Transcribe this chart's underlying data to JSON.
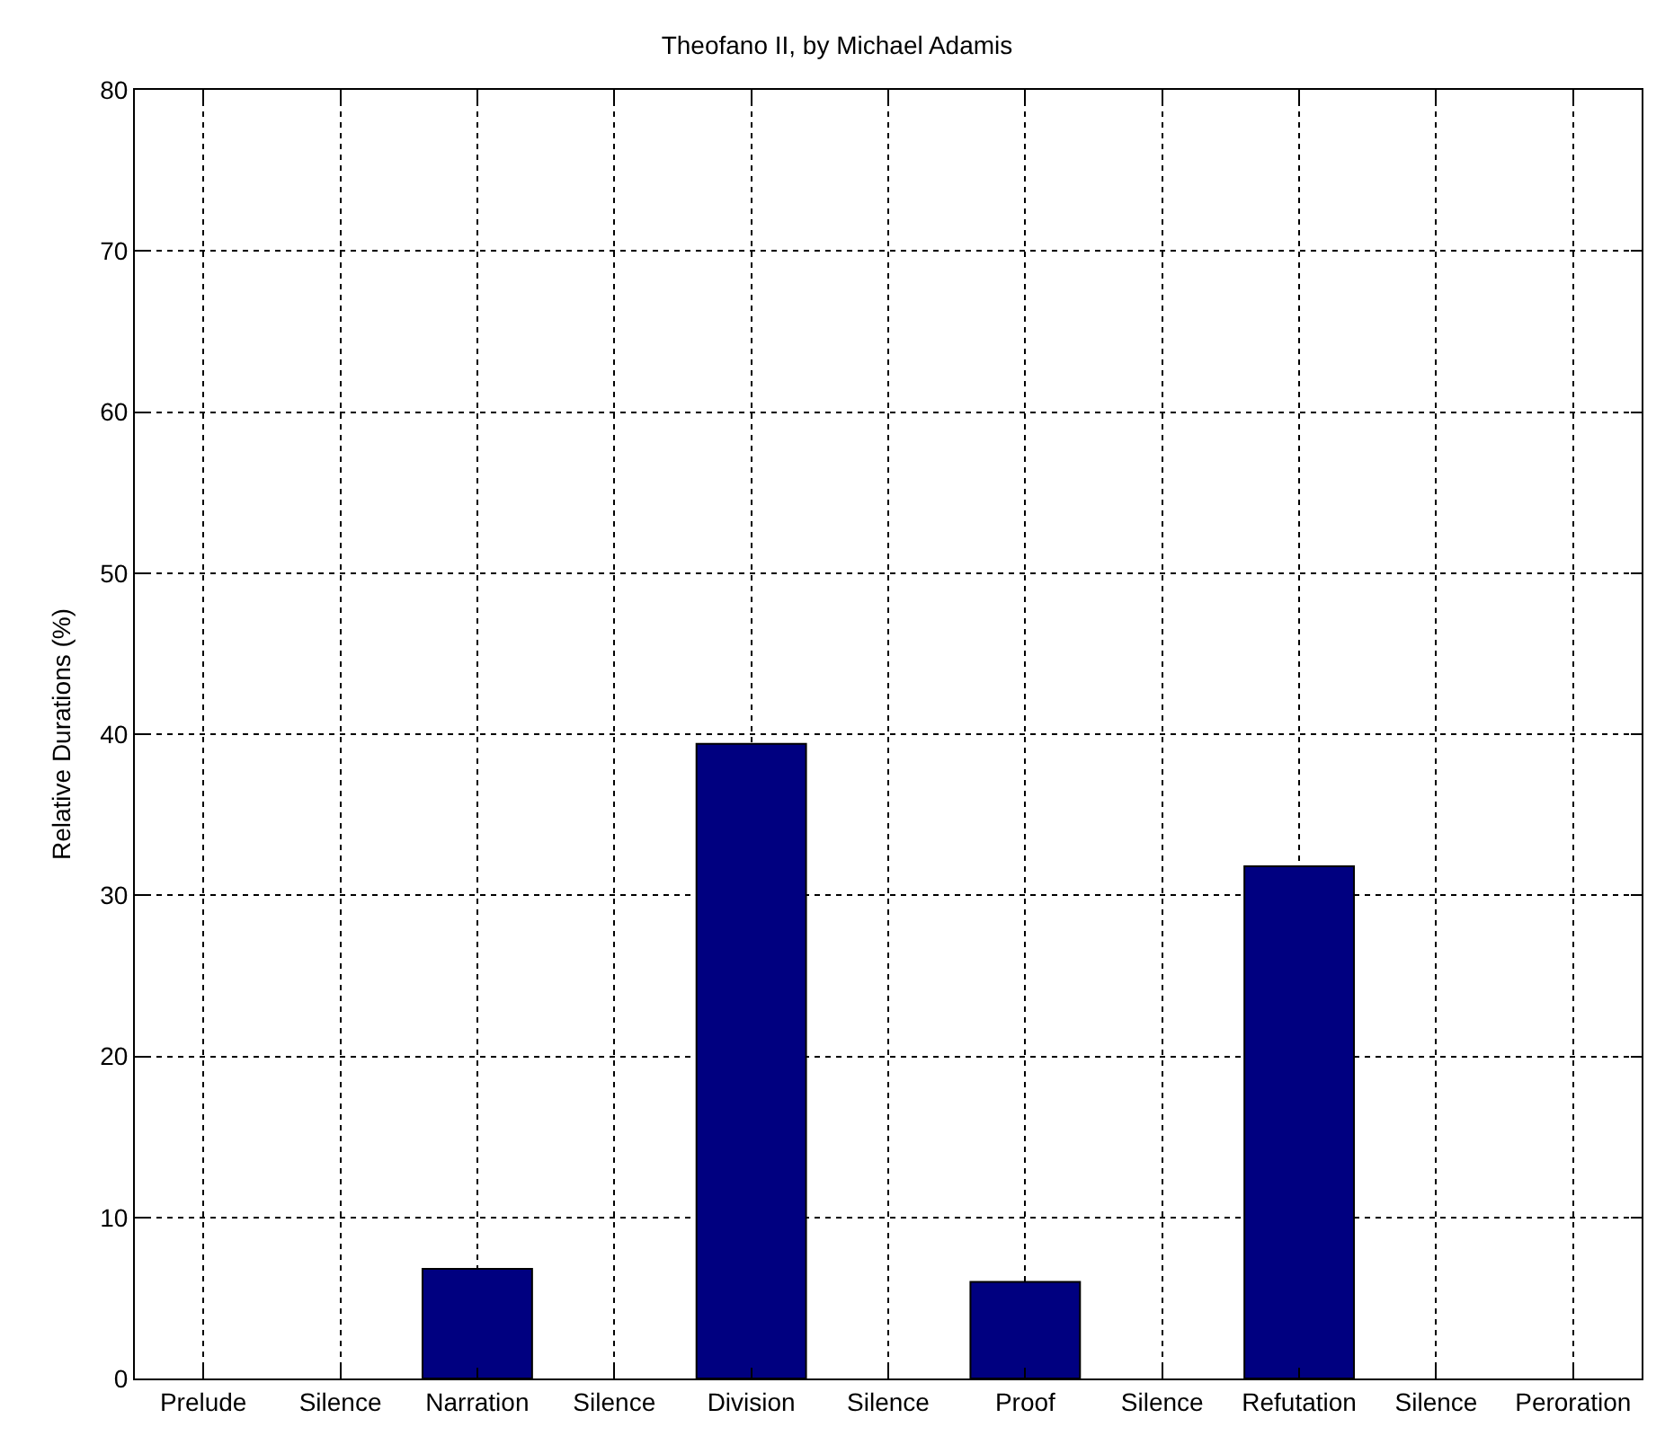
{
  "chart_data": {
    "type": "bar",
    "title": "Theofano II, by Michael Adamis",
    "ylabel": "Relative Durations (%)",
    "categories": [
      "Prelude",
      "Silence",
      "Narration",
      "Silence",
      "Division",
      "Silence",
      "Proof",
      "Silence",
      "Refutation",
      "Silence",
      "Peroration"
    ],
    "values": [
      0,
      0,
      6.8,
      0,
      39.4,
      0,
      6.0,
      0,
      31.8,
      0,
      0
    ],
    "color": "#000080",
    "ylim": [
      0,
      80
    ],
    "yticks": [
      0,
      10,
      20,
      30,
      40,
      50,
      60,
      70,
      80
    ],
    "grid": true,
    "legend": false
  }
}
